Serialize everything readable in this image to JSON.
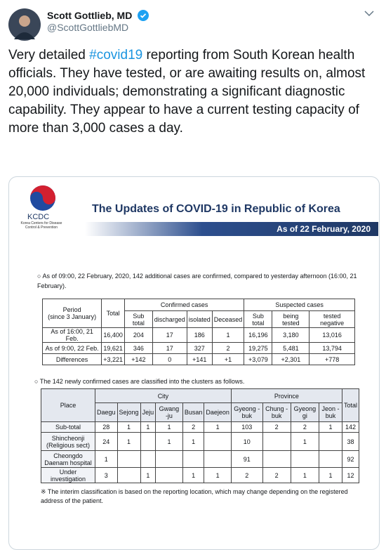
{
  "tweet": {
    "name": "Scott Gottlieb, MD",
    "handle": "@ScottGottliebMD",
    "text_before": "Very detailed ",
    "hashtag": "#covid19",
    "text_after": " reporting from South Korean health officials. They have tested, or are awaiting results on, almost 20,000 individuals; demonstrating a significant diagnostic capability. They appear to have a current testing capacity of more than 3,000 cases a day."
  },
  "image": {
    "logo_text": "KCDC",
    "logo_subtext": "Korea Centers for Disease Control & Prevention",
    "title": "The Updates of COVID-19 in Republic of Korea",
    "date": "As of 22 February, 2020",
    "note1": "As of 09:00, 22 February, 2020, 142 additional cases are confirmed, compared to yesterday afternoon (16:00, 21 February).",
    "table1": {
      "period": "Period",
      "period_note": "(since 3 January)",
      "total": "Total",
      "confirmed": "Confirmed cases",
      "suspected": "Suspected cases",
      "columns": [
        "Sub total",
        "discharged",
        "isolated",
        "Deceased",
        "Sub total",
        "being tested",
        "tested negative"
      ],
      "rows": [
        [
          "As of 16:00, 21 Feb.",
          "16,400",
          "204",
          "17",
          "186",
          "1",
          "16,196",
          "3,180",
          "13,016"
        ],
        [
          "As of 9:00, 22 Feb.",
          "19,621",
          "346",
          "17",
          "327",
          "2",
          "19,275",
          "5,481",
          "13,794"
        ],
        [
          "Differences",
          "+3,221",
          "+142",
          "0",
          "+141",
          "+1",
          "+3,079",
          "+2,301",
          "+778"
        ]
      ]
    },
    "note2": "The 142 newly confirmed cases are classified into the clusters as follows.",
    "table2": {
      "place": "Place",
      "city": "City",
      "province": "Province",
      "total": "Total",
      "columns": [
        "Daegu",
        "Sejong",
        "Jeju",
        "Gwang -ju",
        "Busan",
        "Daejeon",
        "Gyeong -buk",
        "Chung -buk",
        "Gyeong gi",
        "Jeon -buk"
      ],
      "rows": [
        [
          "Sub-total",
          "28",
          "1",
          "1",
          "1",
          "2",
          "1",
          "103",
          "2",
          "2",
          "1",
          "142"
        ],
        [
          "Shincheonji (Religious sect)",
          "24",
          "1",
          null,
          "1",
          "1",
          null,
          "10",
          null,
          "1",
          null,
          "38"
        ],
        [
          "Cheongdo Daenam hospital",
          "1",
          null,
          null,
          null,
          null,
          null,
          "91",
          null,
          null,
          null,
          "92"
        ],
        [
          "Under investigation",
          "3",
          null,
          "1",
          null,
          "1",
          "1",
          "2",
          "2",
          "1",
          "1",
          "12"
        ]
      ]
    },
    "footnote": "※ The interim classification is based on the reporting location, which may change depending on the registered address of the patient."
  }
}
